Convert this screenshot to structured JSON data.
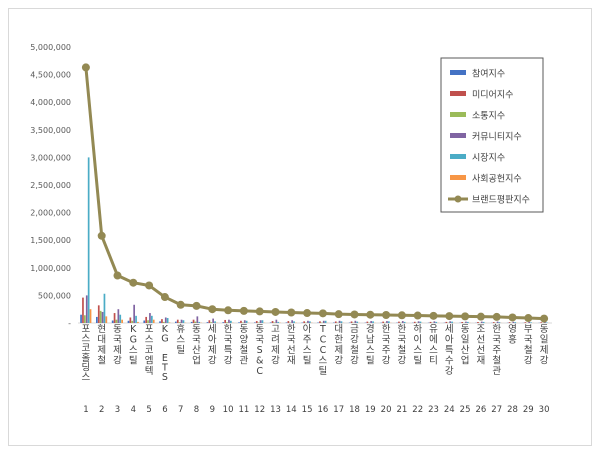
{
  "chart_data": {
    "type": "bar",
    "title": "",
    "xlabel": "",
    "ylabel": "",
    "ylim": [
      0,
      5000000
    ],
    "yticks": [
      "-",
      "500,000",
      "1,000,000",
      "1,500,000",
      "2,000,000",
      "2,500,000",
      "3,000,000",
      "3,500,000",
      "4,000,000",
      "4,500,000",
      "5,000,000"
    ],
    "grid": false,
    "legend_position": "right",
    "x": [
      "1",
      "2",
      "3",
      "4",
      "5",
      "6",
      "7",
      "8",
      "9",
      "10",
      "11",
      "12",
      "13",
      "14",
      "15",
      "16",
      "17",
      "18",
      "19",
      "20",
      "21",
      "22",
      "23",
      "24",
      "25",
      "26",
      "27",
      "28",
      "29",
      "30"
    ],
    "categories": [
      "포스코홀딩스",
      "현대제철",
      "동국제강",
      "KG스틸",
      "포스코엠텍",
      "KG ETS",
      "휴스틸",
      "동국산업",
      "세아제강",
      "한국특강",
      "동양철관",
      "동국S&C",
      "고려제강",
      "한국선재",
      "아주스틸",
      "TCC스틸",
      "대한제강",
      "금강철강",
      "경남스틸",
      "한국주강",
      "한국철강",
      "하이스틸",
      "유에스티",
      "세아특수강",
      "동일산업",
      "조선선재",
      "한국주철관",
      "영흥",
      "부국철강",
      "동일제강"
    ],
    "series": [
      {
        "name": "참여지수",
        "type": "bar",
        "color": "#4472c4",
        "values": [
          150000,
          110000,
          45000,
          40000,
          45000,
          30000,
          25000,
          20000,
          15000,
          15000,
          12000,
          10000,
          10000,
          10000,
          8000,
          8000,
          8000,
          7000,
          6000,
          6000,
          6000,
          5000,
          5000,
          5000,
          5000,
          4000,
          4000,
          4000,
          3000,
          3000
        ]
      },
      {
        "name": "미디어지수",
        "type": "bar",
        "color": "#c0504d",
        "values": [
          460000,
          320000,
          180000,
          100000,
          110000,
          70000,
          60000,
          60000,
          50000,
          55000,
          40000,
          35000,
          35000,
          35000,
          30000,
          30000,
          28000,
          28000,
          25000,
          25000,
          25000,
          22000,
          20000,
          20000,
          18000,
          18000,
          16000,
          15000,
          14000,
          13000
        ]
      },
      {
        "name": "소통지수",
        "type": "bar",
        "color": "#9bbb59",
        "values": [
          140000,
          220000,
          60000,
          40000,
          50000,
          20000,
          15000,
          25000,
          15000,
          15000,
          10000,
          10000,
          10000,
          8000,
          8000,
          8000,
          6000,
          6000,
          5000,
          5000,
          5000,
          4000,
          4000,
          4000,
          4000,
          3000,
          3000,
          3000,
          2000,
          2000
        ]
      },
      {
        "name": "커뮤니티지수",
        "type": "bar",
        "color": "#8064a2",
        "values": [
          500000,
          200000,
          250000,
          330000,
          180000,
          100000,
          60000,
          120000,
          80000,
          60000,
          50000,
          50000,
          60000,
          50000,
          40000,
          40000,
          40000,
          40000,
          35000,
          35000,
          35000,
          30000,
          30000,
          30000,
          25000,
          25000,
          25000,
          22000,
          20000,
          20000
        ]
      },
      {
        "name": "시장지수",
        "type": "bar",
        "color": "#4bacc6",
        "values": [
          3000000,
          530000,
          150000,
          130000,
          130000,
          90000,
          50000,
          20000,
          30000,
          40000,
          40000,
          50000,
          20000,
          30000,
          30000,
          40000,
          30000,
          25000,
          30000,
          30000,
          20000,
          25000,
          20000,
          25000,
          20000,
          20000,
          15000,
          15000,
          12000,
          10000
        ]
      },
      {
        "name": "사회공헌지수",
        "type": "bar",
        "color": "#f79646",
        "values": [
          250000,
          120000,
          60000,
          20000,
          60000,
          10000,
          5000,
          5000,
          5000,
          5000,
          5000,
          5000,
          5000,
          5000,
          5000,
          3000,
          3000,
          3000,
          3000,
          3000,
          3000,
          3000,
          3000,
          3000,
          3000,
          2000,
          2000,
          2000,
          2000,
          2000
        ]
      },
      {
        "name": "브랜드평판지수",
        "type": "line",
        "color": "#938953",
        "values": [
          4630000,
          1580000,
          860000,
          730000,
          680000,
          470000,
          330000,
          310000,
          250000,
          230000,
          220000,
          210000,
          200000,
          190000,
          180000,
          175000,
          160000,
          155000,
          150000,
          145000,
          140000,
          135000,
          130000,
          125000,
          120000,
          115000,
          110000,
          100000,
          90000,
          80000
        ]
      }
    ]
  }
}
